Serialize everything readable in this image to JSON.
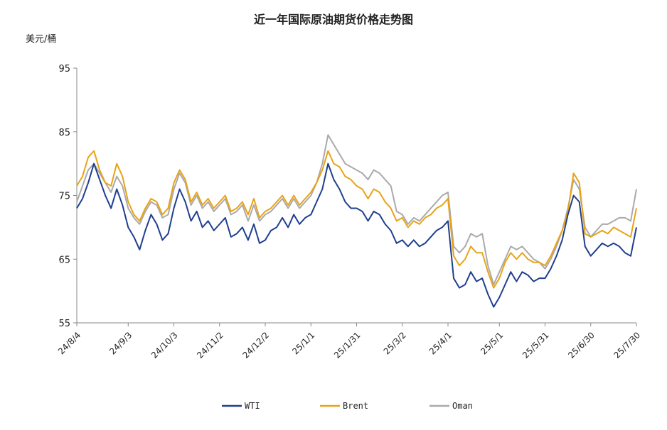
{
  "chart_data": {
    "type": "line",
    "title": "近一年国际原油期货价格走势图",
    "ylabel": "美元/桶",
    "xlabel": "",
    "ylim": [
      55,
      95
    ],
    "yticks": [
      55,
      65,
      75,
      85,
      95
    ],
    "grid": false,
    "legend_position": "bottom",
    "xticks": [
      "24/8/4",
      "24/9/3",
      "24/10/3",
      "24/11/2",
      "24/12/2",
      "25/1/1",
      "25/1/31",
      "25/3/2",
      "25/4/1",
      "25/5/1",
      "25/5/31",
      "25/6/30",
      "25/7/30"
    ],
    "x": [
      "24/8/4",
      "24/8/7",
      "24/8/11",
      "24/8/14",
      "24/8/17",
      "24/8/20",
      "24/8/24",
      "24/8/27",
      "24/8/30",
      "24/9/3",
      "24/9/6",
      "24/9/10",
      "24/9/14",
      "24/9/18",
      "24/9/22",
      "24/9/26",
      "24/9/30",
      "24/10/3",
      "24/10/6",
      "24/10/9",
      "24/10/13",
      "24/10/16",
      "24/10/20",
      "24/10/24",
      "24/10/28",
      "24/11/2",
      "24/11/6",
      "24/11/10",
      "24/11/14",
      "24/11/18",
      "24/11/22",
      "24/11/26",
      "24/11/30",
      "24/12/2",
      "24/12/6",
      "24/12/10",
      "24/12/14",
      "24/12/18",
      "24/12/22",
      "24/12/26",
      "24/12/29",
      "25/1/1",
      "25/1/5",
      "25/1/9",
      "25/1/13",
      "25/1/16",
      "25/1/20",
      "25/1/24",
      "25/1/28",
      "25/1/31",
      "25/2/4",
      "25/2/8",
      "25/2/12",
      "25/2/16",
      "25/2/20",
      "25/2/24",
      "25/2/28",
      "25/3/2",
      "25/3/6",
      "25/3/10",
      "25/3/14",
      "25/3/18",
      "25/3/22",
      "25/3/26",
      "25/3/29",
      "25/4/1",
      "25/4/3",
      "25/4/7",
      "25/4/10",
      "25/4/14",
      "25/4/18",
      "25/4/22",
      "25/4/26",
      "25/4/29",
      "25/5/1",
      "25/5/4",
      "25/5/7",
      "25/5/11",
      "25/5/15",
      "25/5/19",
      "25/5/23",
      "25/5/27",
      "25/5/31",
      "25/6/4",
      "25/6/8",
      "25/6/12",
      "25/6/16",
      "25/6/20",
      "25/6/23",
      "25/6/27",
      "25/6/30",
      "25/7/4",
      "25/7/8",
      "25/7/12",
      "25/7/16",
      "25/7/20",
      "25/7/24",
      "25/7/28",
      "25/7/30"
    ],
    "series": [
      {
        "name": "WTI",
        "color": "#1f3f8f",
        "values": [
          73,
          74.5,
          77,
          80,
          77.5,
          75,
          73,
          76,
          73.5,
          70,
          68.5,
          66.5,
          69.5,
          72,
          70.5,
          68,
          69,
          73,
          76,
          74,
          71,
          72.5,
          70,
          71,
          69.5,
          70.5,
          71.5,
          68.5,
          69,
          70,
          68,
          70.5,
          67.5,
          68,
          69.5,
          70,
          71.5,
          70,
          72,
          70.5,
          71.5,
          72,
          74,
          76,
          80,
          77.5,
          76,
          74,
          73,
          73,
          72.5,
          71,
          72.5,
          72,
          70.5,
          69.5,
          67.5,
          68,
          67,
          68,
          67,
          67.5,
          68.5,
          69.5,
          70,
          71,
          62,
          60.5,
          61,
          63,
          61.5,
          62,
          59.5,
          57.5,
          59,
          61,
          63,
          61.5,
          63,
          62.5,
          61.5,
          62,
          62,
          63.5,
          65.5,
          68,
          72,
          75,
          74,
          67,
          65.5,
          66.5,
          67.5,
          67,
          67.5,
          67,
          66,
          65.5,
          70
        ]
      },
      {
        "name": "Brent",
        "color": "#e8a317",
        "values": [
          76.5,
          78,
          81,
          82,
          79,
          77,
          76.5,
          80,
          78,
          74,
          72,
          71,
          73,
          74.5,
          74,
          72,
          73,
          77,
          79,
          77.5,
          74,
          75.5,
          73.5,
          74.5,
          73,
          74,
          75,
          72.5,
          73,
          74,
          72,
          74.5,
          71.5,
          72.5,
          73,
          74,
          75,
          73.5,
          75,
          73.5,
          74.5,
          75.5,
          77,
          79,
          82,
          80,
          79.5,
          78,
          77.5,
          76.5,
          76,
          74.5,
          76,
          75.5,
          74,
          73,
          71,
          71.5,
          70,
          71,
          70.5,
          71.5,
          72,
          73,
          73.5,
          74.5,
          65.5,
          64,
          65,
          67,
          66,
          66,
          63,
          60.5,
          62,
          64.5,
          66,
          65,
          66,
          65,
          64.5,
          64.5,
          64,
          65.5,
          67.5,
          69.5,
          72.5,
          78.5,
          77,
          69,
          68.5,
          69,
          69.5,
          69,
          70,
          69.5,
          69,
          68.5,
          73
        ]
      },
      {
        "name": "Oman",
        "color": "#aaaaaa",
        "values": [
          74,
          76.5,
          79,
          80,
          78.5,
          77,
          75.5,
          78,
          76.5,
          73,
          71.5,
          70.5,
          72.5,
          74,
          73.5,
          71.5,
          72,
          76,
          78.5,
          77,
          73.5,
          75,
          73,
          74,
          72.5,
          73.5,
          74.5,
          72,
          72.5,
          73.5,
          71,
          73.5,
          71,
          72,
          72.5,
          73.5,
          74.5,
          73,
          74.5,
          73,
          74,
          75,
          77,
          80,
          84.5,
          83,
          81.5,
          80,
          79.5,
          79,
          78.5,
          77.5,
          79,
          78.5,
          77.5,
          76.5,
          72.5,
          72,
          70.5,
          71.5,
          71,
          72,
          73,
          74,
          75,
          75.5,
          67,
          66,
          67,
          69,
          68.5,
          69,
          64,
          61,
          63,
          65,
          67,
          66.5,
          67,
          66,
          65,
          64.5,
          63.5,
          65,
          67,
          69.5,
          73,
          77.5,
          76,
          70,
          68.5,
          69.5,
          70.5,
          70.5,
          71,
          71.5,
          71.5,
          71,
          76
        ]
      }
    ]
  },
  "legend": [
    {
      "label": "WTI",
      "color": "#1f3f8f"
    },
    {
      "label": "Brent",
      "color": "#e8a317"
    },
    {
      "label": "Oman",
      "color": "#aaaaaa"
    }
  ]
}
